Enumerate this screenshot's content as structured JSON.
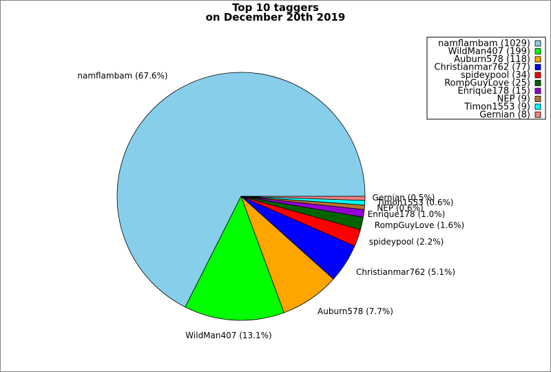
{
  "chart_data": {
    "type": "pie",
    "title": "Top 10 taggers",
    "subtitle": "on December 20th 2019",
    "legend_position": "top-right",
    "slices": [
      {
        "name": "namflambam",
        "value": 1029,
        "color": "#87ceeb",
        "legend": "namflambam (1029)",
        "label": "namflambam (67.6%)"
      },
      {
        "name": "WildMan407",
        "value": 199,
        "color": "#00ff00",
        "legend": "WildMan407 (199)",
        "label": "WildMan407 (13.1%)"
      },
      {
        "name": "Auburn578",
        "value": 118,
        "color": "#ffa500",
        "legend": "Auburn578 (118)",
        "label": "Auburn578 (7.7%)"
      },
      {
        "name": "Christianmar762",
        "value": 77,
        "color": "#0000ff",
        "legend": "Christianmar762 (77)",
        "label": "Christianmar762 (5.1%)"
      },
      {
        "name": "spideypool",
        "value": 34,
        "color": "#ff0000",
        "legend": "spideypool (34)",
        "label": "spideypool (2.2%)"
      },
      {
        "name": "RompGuyLove",
        "value": 25,
        "color": "#006400",
        "legend": "RompGuyLove (25)",
        "label": "RompGuyLove (1.6%)"
      },
      {
        "name": "Enrique178",
        "value": 15,
        "color": "#9400d3",
        "legend": "Enrique178 (15)",
        "label": "Enrique178 (1.0%)"
      },
      {
        "name": "NEP",
        "value": 9,
        "color": "#b87333",
        "legend": "NEP (9)",
        "label": "NEP (0.6%)"
      },
      {
        "name": "Timon1553",
        "value": 9,
        "color": "#00ffff",
        "legend": "Timon1553 (9)",
        "label": "Timon1553 (0.6%)"
      },
      {
        "name": "Gernian",
        "value": 8,
        "color": "#f08080",
        "legend": "Gernian (8)",
        "label": "Gernian (0.5%)"
      }
    ]
  }
}
